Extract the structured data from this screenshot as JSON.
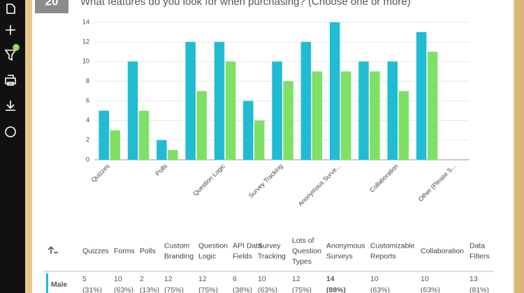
{
  "header": {
    "number": "20",
    "title": "What features do you look for when purchasing? (Choose one or more)"
  },
  "sidebar": {
    "filter_badge": "2"
  },
  "chart_data": {
    "type": "bar",
    "categories": [
      "Quizzes",
      null,
      "Polls",
      null,
      "Question Logic",
      null,
      "Survey Tracking",
      null,
      "Anonymous Surve...",
      null,
      "Collaboration",
      null,
      "Other (Please S..."
    ],
    "series": [
      {
        "color": "#1fbcd3",
        "values": [
          5,
          10,
          2,
          12,
          12,
          6,
          10,
          12,
          14,
          10,
          10,
          13,
          0
        ]
      },
      {
        "color": "#7fe066",
        "values": [
          3,
          5,
          1,
          7,
          10,
          4,
          8,
          9,
          9,
          9,
          7,
          11,
          0
        ]
      }
    ],
    "ylim": [
      0,
      14
    ],
    "yticks": [
      0,
      2,
      4,
      6,
      8,
      10,
      12,
      14
    ],
    "grid": true
  },
  "table": {
    "headers": [
      "Quizzes",
      "Forms",
      "Polls",
      "Custom Branding",
      "Question Logic",
      "API Data Fields",
      "Survey Tracking",
      "Lots of Question Types",
      "Anonymous Surveys",
      "Customizable Reports",
      "Collaboration",
      "Data Filters"
    ],
    "rows": [
      {
        "label": "Male",
        "cells": [
          [
            "5",
            "(31%)"
          ],
          [
            "10",
            "(63%)"
          ],
          [
            "2",
            "(13%)"
          ],
          [
            "12",
            "(75%)"
          ],
          [
            "12",
            "(75%)"
          ],
          [
            "6",
            "(38%)"
          ],
          [
            "10",
            "(63%)"
          ],
          [
            "12",
            "(75%)"
          ],
          [
            "14",
            "(88%)"
          ],
          [
            "10",
            "(63%)"
          ],
          [
            "10",
            "(63%)"
          ],
          [
            "13",
            "(81%)"
          ]
        ]
      }
    ]
  }
}
